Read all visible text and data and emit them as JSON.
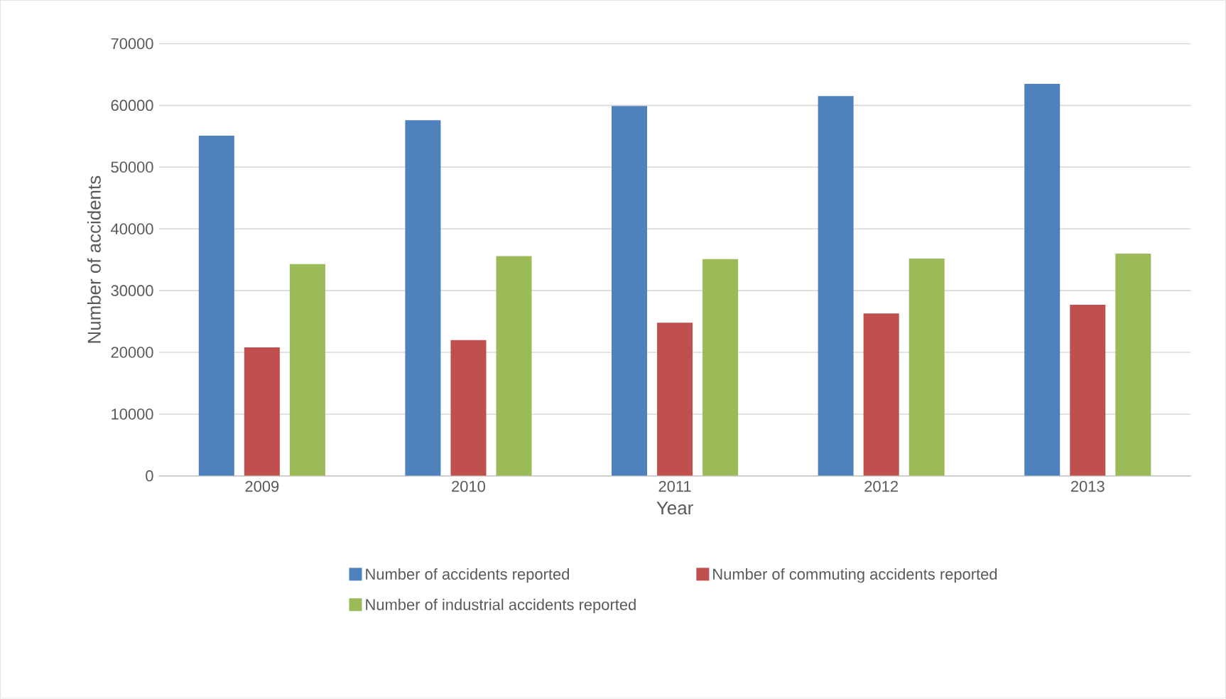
{
  "chart_data": {
    "type": "bar",
    "xlabel": "Year",
    "ylabel": "Number of accidents",
    "categories": [
      "2009",
      "2010",
      "2011",
      "2012",
      "2013"
    ],
    "series": [
      {
        "name": "Number of accidents reported",
        "color": "#4f81bd",
        "values": [
          55100,
          57600,
          59900,
          61500,
          63500
        ]
      },
      {
        "name": "Number of commuting accidents reported",
        "color": "#c0504d",
        "values": [
          20800,
          22000,
          24800,
          26300,
          27700
        ]
      },
      {
        "name": "Number of industrial accidents reported",
        "color": "#9bbb59",
        "values": [
          34300,
          35600,
          35100,
          35200,
          36000
        ]
      }
    ],
    "ylim": [
      0,
      70000
    ],
    "yticks": [
      0,
      10000,
      20000,
      30000,
      40000,
      50000,
      60000,
      70000
    ],
    "grid": "y",
    "legend": "bottom"
  }
}
